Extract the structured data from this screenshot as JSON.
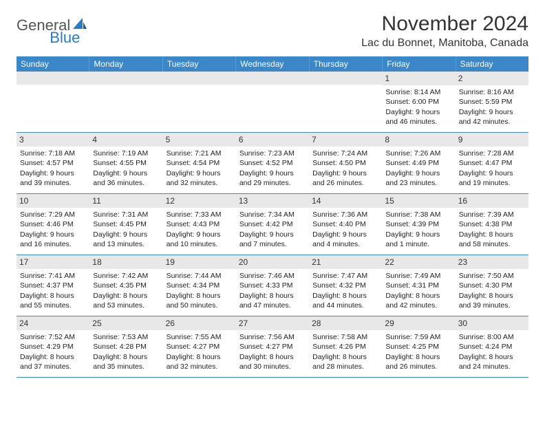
{
  "logo": {
    "text1": "General",
    "text2": "Blue"
  },
  "title": "November 2024",
  "location": "Lac du Bonnet, Manitoba, Canada",
  "colors": {
    "header_bg": "#3b87c8",
    "header_text": "#ffffff",
    "daynum_bg": "#e8e8e8",
    "row_border": "#3b87c8",
    "logo_gray": "#555555",
    "logo_blue": "#2a7bbf"
  },
  "weekdays": [
    "Sunday",
    "Monday",
    "Tuesday",
    "Wednesday",
    "Thursday",
    "Friday",
    "Saturday"
  ],
  "weeks": [
    [
      {
        "day": "",
        "sunrise": "",
        "sunset": "",
        "daylight": ""
      },
      {
        "day": "",
        "sunrise": "",
        "sunset": "",
        "daylight": ""
      },
      {
        "day": "",
        "sunrise": "",
        "sunset": "",
        "daylight": ""
      },
      {
        "day": "",
        "sunrise": "",
        "sunset": "",
        "daylight": ""
      },
      {
        "day": "",
        "sunrise": "",
        "sunset": "",
        "daylight": ""
      },
      {
        "day": "1",
        "sunrise": "Sunrise: 8:14 AM",
        "sunset": "Sunset: 6:00 PM",
        "daylight": "Daylight: 9 hours and 46 minutes."
      },
      {
        "day": "2",
        "sunrise": "Sunrise: 8:16 AM",
        "sunset": "Sunset: 5:59 PM",
        "daylight": "Daylight: 9 hours and 42 minutes."
      }
    ],
    [
      {
        "day": "3",
        "sunrise": "Sunrise: 7:18 AM",
        "sunset": "Sunset: 4:57 PM",
        "daylight": "Daylight: 9 hours and 39 minutes."
      },
      {
        "day": "4",
        "sunrise": "Sunrise: 7:19 AM",
        "sunset": "Sunset: 4:55 PM",
        "daylight": "Daylight: 9 hours and 36 minutes."
      },
      {
        "day": "5",
        "sunrise": "Sunrise: 7:21 AM",
        "sunset": "Sunset: 4:54 PM",
        "daylight": "Daylight: 9 hours and 32 minutes."
      },
      {
        "day": "6",
        "sunrise": "Sunrise: 7:23 AM",
        "sunset": "Sunset: 4:52 PM",
        "daylight": "Daylight: 9 hours and 29 minutes."
      },
      {
        "day": "7",
        "sunrise": "Sunrise: 7:24 AM",
        "sunset": "Sunset: 4:50 PM",
        "daylight": "Daylight: 9 hours and 26 minutes."
      },
      {
        "day": "8",
        "sunrise": "Sunrise: 7:26 AM",
        "sunset": "Sunset: 4:49 PM",
        "daylight": "Daylight: 9 hours and 23 minutes."
      },
      {
        "day": "9",
        "sunrise": "Sunrise: 7:28 AM",
        "sunset": "Sunset: 4:47 PM",
        "daylight": "Daylight: 9 hours and 19 minutes."
      }
    ],
    [
      {
        "day": "10",
        "sunrise": "Sunrise: 7:29 AM",
        "sunset": "Sunset: 4:46 PM",
        "daylight": "Daylight: 9 hours and 16 minutes."
      },
      {
        "day": "11",
        "sunrise": "Sunrise: 7:31 AM",
        "sunset": "Sunset: 4:45 PM",
        "daylight": "Daylight: 9 hours and 13 minutes."
      },
      {
        "day": "12",
        "sunrise": "Sunrise: 7:33 AM",
        "sunset": "Sunset: 4:43 PM",
        "daylight": "Daylight: 9 hours and 10 minutes."
      },
      {
        "day": "13",
        "sunrise": "Sunrise: 7:34 AM",
        "sunset": "Sunset: 4:42 PM",
        "daylight": "Daylight: 9 hours and 7 minutes."
      },
      {
        "day": "14",
        "sunrise": "Sunrise: 7:36 AM",
        "sunset": "Sunset: 4:40 PM",
        "daylight": "Daylight: 9 hours and 4 minutes."
      },
      {
        "day": "15",
        "sunrise": "Sunrise: 7:38 AM",
        "sunset": "Sunset: 4:39 PM",
        "daylight": "Daylight: 9 hours and 1 minute."
      },
      {
        "day": "16",
        "sunrise": "Sunrise: 7:39 AM",
        "sunset": "Sunset: 4:38 PM",
        "daylight": "Daylight: 8 hours and 58 minutes."
      }
    ],
    [
      {
        "day": "17",
        "sunrise": "Sunrise: 7:41 AM",
        "sunset": "Sunset: 4:37 PM",
        "daylight": "Daylight: 8 hours and 55 minutes."
      },
      {
        "day": "18",
        "sunrise": "Sunrise: 7:42 AM",
        "sunset": "Sunset: 4:35 PM",
        "daylight": "Daylight: 8 hours and 53 minutes."
      },
      {
        "day": "19",
        "sunrise": "Sunrise: 7:44 AM",
        "sunset": "Sunset: 4:34 PM",
        "daylight": "Daylight: 8 hours and 50 minutes."
      },
      {
        "day": "20",
        "sunrise": "Sunrise: 7:46 AM",
        "sunset": "Sunset: 4:33 PM",
        "daylight": "Daylight: 8 hours and 47 minutes."
      },
      {
        "day": "21",
        "sunrise": "Sunrise: 7:47 AM",
        "sunset": "Sunset: 4:32 PM",
        "daylight": "Daylight: 8 hours and 44 minutes."
      },
      {
        "day": "22",
        "sunrise": "Sunrise: 7:49 AM",
        "sunset": "Sunset: 4:31 PM",
        "daylight": "Daylight: 8 hours and 42 minutes."
      },
      {
        "day": "23",
        "sunrise": "Sunrise: 7:50 AM",
        "sunset": "Sunset: 4:30 PM",
        "daylight": "Daylight: 8 hours and 39 minutes."
      }
    ],
    [
      {
        "day": "24",
        "sunrise": "Sunrise: 7:52 AM",
        "sunset": "Sunset: 4:29 PM",
        "daylight": "Daylight: 8 hours and 37 minutes."
      },
      {
        "day": "25",
        "sunrise": "Sunrise: 7:53 AM",
        "sunset": "Sunset: 4:28 PM",
        "daylight": "Daylight: 8 hours and 35 minutes."
      },
      {
        "day": "26",
        "sunrise": "Sunrise: 7:55 AM",
        "sunset": "Sunset: 4:27 PM",
        "daylight": "Daylight: 8 hours and 32 minutes."
      },
      {
        "day": "27",
        "sunrise": "Sunrise: 7:56 AM",
        "sunset": "Sunset: 4:27 PM",
        "daylight": "Daylight: 8 hours and 30 minutes."
      },
      {
        "day": "28",
        "sunrise": "Sunrise: 7:58 AM",
        "sunset": "Sunset: 4:26 PM",
        "daylight": "Daylight: 8 hours and 28 minutes."
      },
      {
        "day": "29",
        "sunrise": "Sunrise: 7:59 AM",
        "sunset": "Sunset: 4:25 PM",
        "daylight": "Daylight: 8 hours and 26 minutes."
      },
      {
        "day": "30",
        "sunrise": "Sunrise: 8:00 AM",
        "sunset": "Sunset: 4:24 PM",
        "daylight": "Daylight: 8 hours and 24 minutes."
      }
    ]
  ]
}
